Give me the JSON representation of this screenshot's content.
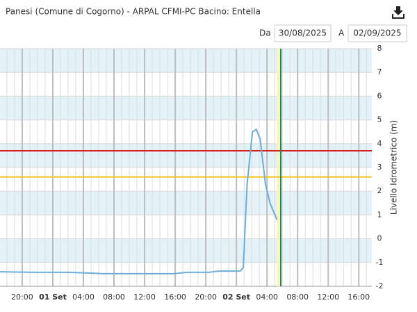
{
  "chart_data": {
    "type": "line",
    "title": "Panesi (Comune di Cogorno) - ARPAL CFMI-PC Bacino: Entella",
    "from_label": "Da",
    "from_date": "30/08/2025",
    "to_label": "A",
    "to_date": "02/09/2025",
    "y_label": "Livello Idrometrico (m)",
    "x": [
      -6.9,
      -2.4,
      2.2,
      6.7,
      11.3,
      15.8,
      17.6,
      20.4,
      21.7,
      24.5,
      24.9,
      25.4,
      26.1,
      26.6,
      27.1,
      27.8,
      28.4,
      29.3
    ],
    "series": [
      {
        "color": "#6aaede",
        "values": [
          -1.39,
          -1.41,
          -1.41,
          -1.47,
          -1.47,
          -1.47,
          -1.41,
          -1.41,
          -1.36,
          -1.36,
          -1.21,
          2.3,
          4.5,
          4.6,
          4.2,
          2.3,
          1.5,
          0.8
        ]
      }
    ],
    "xlim": [
      -6.9,
      41.7
    ],
    "xticks": [
      {
        "value": -4,
        "label": "20:00"
      },
      {
        "value": 0,
        "label": "01 Set"
      },
      {
        "value": 4,
        "label": "04:00"
      },
      {
        "value": 8,
        "label": "08:00"
      },
      {
        "value": 12,
        "label": "12:00"
      },
      {
        "value": 16,
        "label": "16:00"
      },
      {
        "value": 20,
        "label": "20:00"
      },
      {
        "value": 24,
        "label": "02 Set"
      },
      {
        "value": 28,
        "label": "04:00"
      },
      {
        "value": 32,
        "label": "08:00"
      },
      {
        "value": 36,
        "label": "12:00"
      },
      {
        "value": 40,
        "label": "16:00"
      }
    ],
    "ylim": [
      -2,
      8
    ],
    "yticks": [
      -2,
      -1,
      0,
      1,
      2,
      3,
      4,
      5,
      6,
      7,
      8
    ],
    "grid": true,
    "band_color": "#e2f2f8",
    "plot_lines_y": [
      {
        "value": 3.7,
        "color": "#d62020"
      },
      {
        "value": 2.6,
        "color": "#f0c419"
      }
    ],
    "plot_band_x": {
      "from": 29.3,
      "to": 29.8,
      "color": "#fbf4b8"
    },
    "plot_line_x": {
      "value": 29.8,
      "color": "#1a8a5a"
    }
  }
}
